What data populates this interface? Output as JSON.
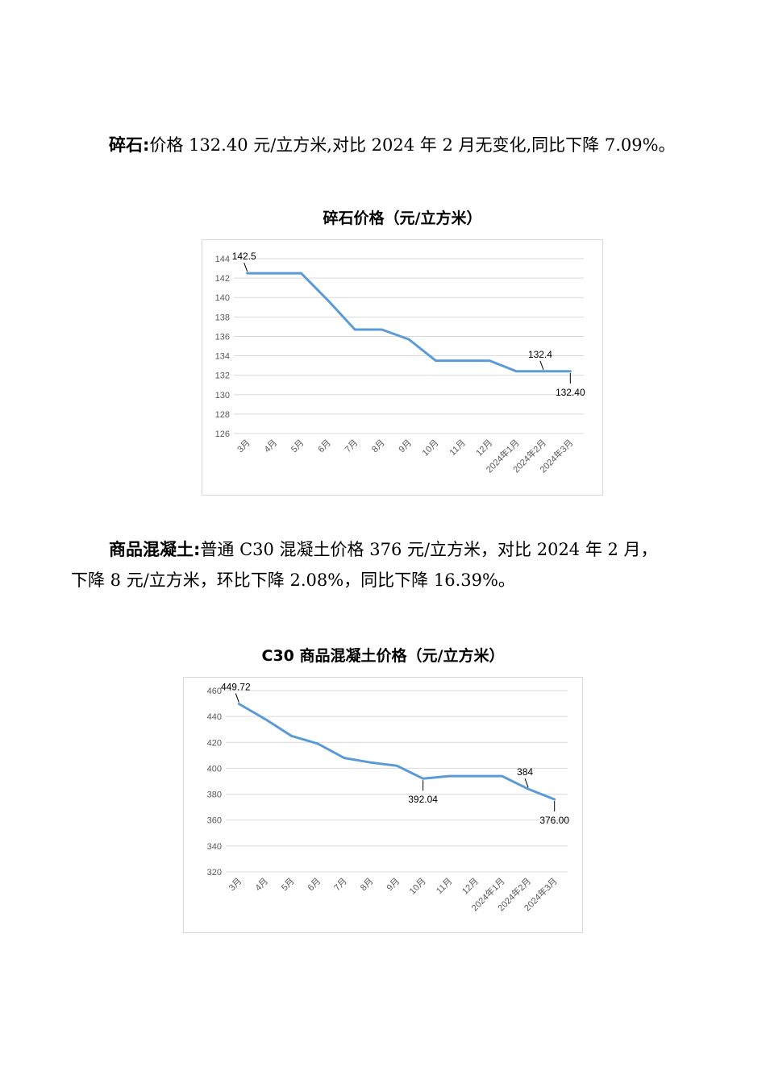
{
  "section1": {
    "label": "碎石",
    "separator": ":",
    "text": "价格 132.40 元/立方米,对比 2024 年 2 月无变化,同比下降 7.09%。"
  },
  "section2": {
    "label": "商品混凝土",
    "separator": ":",
    "text_line1": "普通 C30 混凝土价格 376 元/立方米，对比 2024 年 2 月，",
    "text_line2": "下降 8 元/立方米，环比下降 2.08%，同比下降 16.39%。"
  },
  "chart_data": [
    {
      "type": "line",
      "title": "碎石价格（元/立方米）",
      "categories": [
        "3月",
        "4月",
        "5月",
        "6月",
        "7月",
        "8月",
        "9月",
        "10月",
        "11月",
        "12月",
        "2024年1月",
        "2024年2月",
        "2024年3月"
      ],
      "values": [
        142.5,
        142.5,
        142.5,
        139.7,
        136.7,
        136.7,
        135.7,
        133.5,
        133.5,
        133.5,
        132.4,
        132.4,
        132.4
      ],
      "ylim": [
        126,
        144
      ],
      "yticks": [
        126,
        128,
        130,
        132,
        134,
        136,
        138,
        140,
        142,
        144
      ],
      "grid": true,
      "line_color": "#5b9bd5",
      "annotations": [
        {
          "index": 0,
          "text": "142.5",
          "position": "above"
        },
        {
          "index": 11,
          "text": "132.4",
          "position": "above"
        },
        {
          "index": 12,
          "text": "132.40",
          "position": "below"
        }
      ]
    },
    {
      "type": "line",
      "title": "C30 商品混凝土价格（元/立方米）",
      "categories": [
        "3月",
        "4月",
        "5月",
        "6月",
        "7月",
        "8月",
        "9月",
        "10月",
        "11月",
        "12月",
        "2024年1月",
        "2024年2月",
        "2024年3月"
      ],
      "values": [
        449.72,
        438,
        425,
        419,
        408,
        404.5,
        402,
        392.04,
        394,
        394,
        394,
        384,
        376
      ],
      "ylim": [
        320,
        460
      ],
      "yticks": [
        320,
        340,
        360,
        380,
        400,
        420,
        440,
        460
      ],
      "grid": true,
      "line_color": "#5b9bd5",
      "annotations": [
        {
          "index": 0,
          "text": "449.72",
          "position": "above"
        },
        {
          "index": 7,
          "text": "392.04",
          "position": "below"
        },
        {
          "index": 11,
          "text": "384",
          "position": "above"
        },
        {
          "index": 12,
          "text": "376.00",
          "position": "below"
        }
      ]
    }
  ]
}
